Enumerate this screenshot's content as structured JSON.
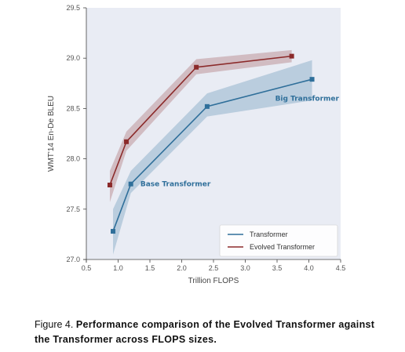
{
  "chart_data": {
    "type": "line",
    "title": "",
    "xlabel": "Trillion FLOPS",
    "ylabel": "WMT'14 En-De BLEU",
    "xlim": [
      0.5,
      4.5
    ],
    "ylim": [
      27.0,
      29.5
    ],
    "xticks": [
      "0.5",
      "1.0",
      "1.5",
      "2.0",
      "2.5",
      "3.0",
      "3.5",
      "4.0",
      "4.5"
    ],
    "yticks": [
      "27.0",
      "27.5",
      "28.0",
      "28.5",
      "29.0",
      "29.5"
    ],
    "grid": false,
    "legend_position": "bottom-right",
    "background": "#e9ecf4",
    "series": [
      {
        "name": "Transformer",
        "color": "#2f6f9a",
        "x": [
          0.92,
          1.2,
          2.4,
          4.05
        ],
        "y": [
          27.28,
          27.75,
          28.52,
          28.79
        ],
        "lower": [
          27.05,
          27.66,
          28.42,
          28.58
        ],
        "upper": [
          27.5,
          27.88,
          28.65,
          28.98
        ]
      },
      {
        "name": "Evolved Transformer",
        "color": "#8b2a2a",
        "x": [
          0.87,
          1.13,
          2.23,
          3.73
        ],
        "y": [
          27.74,
          28.17,
          28.91,
          29.02
        ],
        "lower": [
          27.57,
          28.08,
          28.84,
          28.96
        ],
        "upper": [
          27.88,
          28.27,
          28.99,
          29.08
        ]
      }
    ],
    "annotations": [
      {
        "text": "Big Transformer",
        "x": 3.47,
        "y": 28.6,
        "color": "#2f6f9a"
      },
      {
        "text": "Base Transformer",
        "x": 1.35,
        "y": 27.75,
        "color": "#2f6f9a"
      }
    ]
  },
  "caption": {
    "figure_label": "Figure 4.",
    "text": "Performance comparison of the Evolved Transformer against the Transformer across FLOPS sizes."
  }
}
